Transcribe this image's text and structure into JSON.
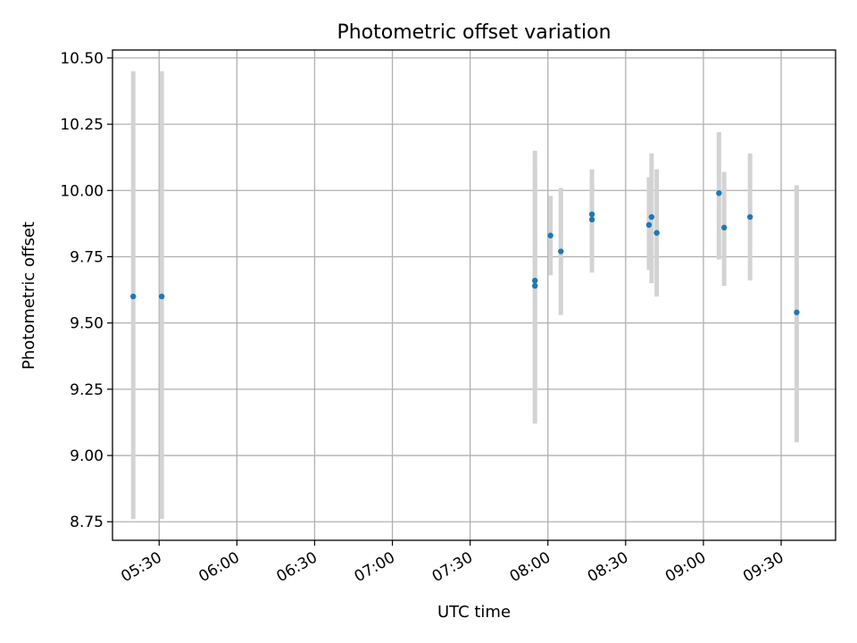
{
  "chart_data": {
    "type": "scatter",
    "title": "Photometric offset variation",
    "xlabel": "UTC time",
    "ylabel": "Photometric offset",
    "x_type": "time",
    "xlim": [
      "05:12",
      "09:51"
    ],
    "ylim": [
      8.68,
      10.53
    ],
    "x_ticks": [
      "05:30",
      "06:00",
      "06:30",
      "07:00",
      "07:30",
      "08:00",
      "08:30",
      "09:00",
      "09:30"
    ],
    "y_ticks": [
      8.75,
      9.0,
      9.25,
      9.5,
      9.75,
      10.0,
      10.25,
      10.5
    ],
    "y_tick_labels": [
      "8.75",
      "9.00",
      "9.25",
      "9.50",
      "9.75",
      "10.00",
      "10.25",
      "10.50"
    ],
    "grid": true,
    "colors": {
      "points": "#1f77b4",
      "errorbars": "#d3d3d3",
      "grid": "#b0b0b0"
    },
    "series": [
      {
        "points": [
          {
            "x": "05:20",
            "y": 9.6,
            "y_low": 8.76,
            "y_high": 10.45
          },
          {
            "x": "05:31",
            "y": 9.6,
            "y_low": 8.76,
            "y_high": 10.45
          },
          {
            "x": "07:55",
            "y": 9.66,
            "y_low": 9.12,
            "y_high": 10.15
          },
          {
            "x": "07:55",
            "y": 9.64,
            "y_low": 9.25,
            "y_high": 10.08
          },
          {
            "x": "08:01",
            "y": 9.83,
            "y_low": 9.68,
            "y_high": 9.98
          },
          {
            "x": "08:05",
            "y": 9.77,
            "y_low": 9.53,
            "y_high": 10.01
          },
          {
            "x": "08:17",
            "y": 9.89,
            "y_low": 9.69,
            "y_high": 10.08
          },
          {
            "x": "08:17",
            "y": 9.91,
            "y_low": 9.75,
            "y_high": 10.05
          },
          {
            "x": "08:39",
            "y": 9.87,
            "y_low": 9.7,
            "y_high": 10.05
          },
          {
            "x": "08:40",
            "y": 9.9,
            "y_low": 9.65,
            "y_high": 10.14
          },
          {
            "x": "08:42",
            "y": 9.84,
            "y_low": 9.6,
            "y_high": 10.08
          },
          {
            "x": "09:06",
            "y": 9.99,
            "y_low": 9.74,
            "y_high": 10.22
          },
          {
            "x": "09:08",
            "y": 9.86,
            "y_low": 9.64,
            "y_high": 10.07
          },
          {
            "x": "09:18",
            "y": 9.9,
            "y_low": 9.66,
            "y_high": 10.14
          },
          {
            "x": "09:36",
            "y": 9.54,
            "y_low": 9.05,
            "y_high": 10.02
          }
        ]
      }
    ]
  }
}
